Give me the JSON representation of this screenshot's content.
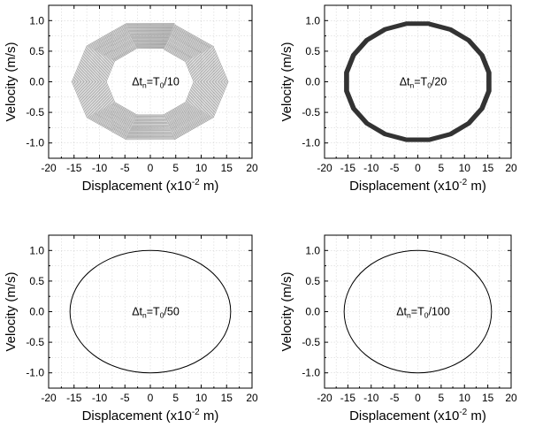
{
  "chart_data": [
    {
      "type": "line",
      "panel": "top-left",
      "xlabel": "Displacement (x10",
      "xlabel_exp": "-2",
      "xlabel_tail": " m)",
      "ylabel": "Velocity (m/s)",
      "xlim": [
        -20,
        20
      ],
      "ylim": [
        -1.25,
        1.25
      ],
      "xticks": [
        "-20",
        "-15",
        "-10",
        "-5",
        "0",
        "5",
        "10",
        "15",
        "20"
      ],
      "yticks": [
        "1.0",
        "0.5",
        "0.0",
        "-0.5",
        "-1.0"
      ],
      "grid": true,
      "annotation": {
        "prefix": "Δt",
        "sub1": "n",
        "mid": "=T",
        "sub2": "0",
        "suffix": "/10"
      },
      "series": [
        {
          "style": "polygon-spiral",
          "sides": 10,
          "rotation_deg": 18,
          "x_radius_range": [
            8.5,
            15.5
          ],
          "y_radius_range": [
            0.56,
            1.0
          ],
          "loops": 28,
          "color": "#8c8c8c"
        }
      ]
    },
    {
      "type": "line",
      "panel": "top-right",
      "xlabel": "Displacement (x10",
      "xlabel_exp": "-2",
      "xlabel_tail": " m)",
      "ylabel": "Velocity (m/s)",
      "xlim": [
        -20,
        20
      ],
      "ylim": [
        -1.25,
        1.25
      ],
      "xticks": [
        "-20",
        "-15",
        "-10",
        "-5",
        "0",
        "5",
        "10",
        "15",
        "20"
      ],
      "yticks": [
        "1.0",
        "0.5",
        "0.0",
        "-0.5",
        "-1.0"
      ],
      "grid": true,
      "annotation": {
        "prefix": "Δt",
        "sub1": "n",
        "mid": "=T",
        "sub2": "0",
        "suffix": "/20"
      },
      "series": [
        {
          "style": "polygon-spiral",
          "sides": 20,
          "rotation_deg": 9,
          "x_radius_range": [
            15.0,
            15.9
          ],
          "y_radius_range": [
            0.93,
            0.99
          ],
          "loops": 14,
          "color": "#333333"
        }
      ]
    },
    {
      "type": "line",
      "panel": "bottom-left",
      "xlabel": "Displacement (x10",
      "xlabel_exp": "-2",
      "xlabel_tail": " m)",
      "ylabel": "Velocity (m/s)",
      "xlim": [
        -20,
        20
      ],
      "ylim": [
        -1.25,
        1.25
      ],
      "xticks": [
        "-20",
        "-15",
        "-10",
        "-5",
        "0",
        "5",
        "10",
        "15",
        "20"
      ],
      "yticks": [
        "1.0",
        "0.5",
        "0.0",
        "-0.5",
        "-1.0"
      ],
      "grid": true,
      "annotation": {
        "prefix": "Δt",
        "sub1": "n",
        "mid": "=T",
        "sub2": "0",
        "suffix": "/50"
      },
      "series": [
        {
          "style": "ellipse",
          "x_radius": 15.8,
          "y_radius": 1.0,
          "color": "#000000"
        }
      ]
    },
    {
      "type": "line",
      "panel": "bottom-right",
      "xlabel": "Displacement (x10",
      "xlabel_exp": "-2",
      "xlabel_tail": " m)",
      "ylabel": "Velocity (m/s)",
      "xlim": [
        -20,
        20
      ],
      "ylim": [
        -1.25,
        1.25
      ],
      "xticks": [
        "-20",
        "-15",
        "-10",
        "-5",
        "0",
        "5",
        "10",
        "15",
        "20"
      ],
      "yticks": [
        "1.0",
        "0.5",
        "0.0",
        "-0.5",
        "-1.0"
      ],
      "grid": true,
      "annotation": {
        "prefix": "Δt",
        "sub1": "n",
        "mid": "=T",
        "sub2": "0",
        "suffix": "/100"
      },
      "series": [
        {
          "style": "ellipse",
          "x_radius": 15.8,
          "y_radius": 1.0,
          "color": "#000000"
        }
      ]
    }
  ]
}
